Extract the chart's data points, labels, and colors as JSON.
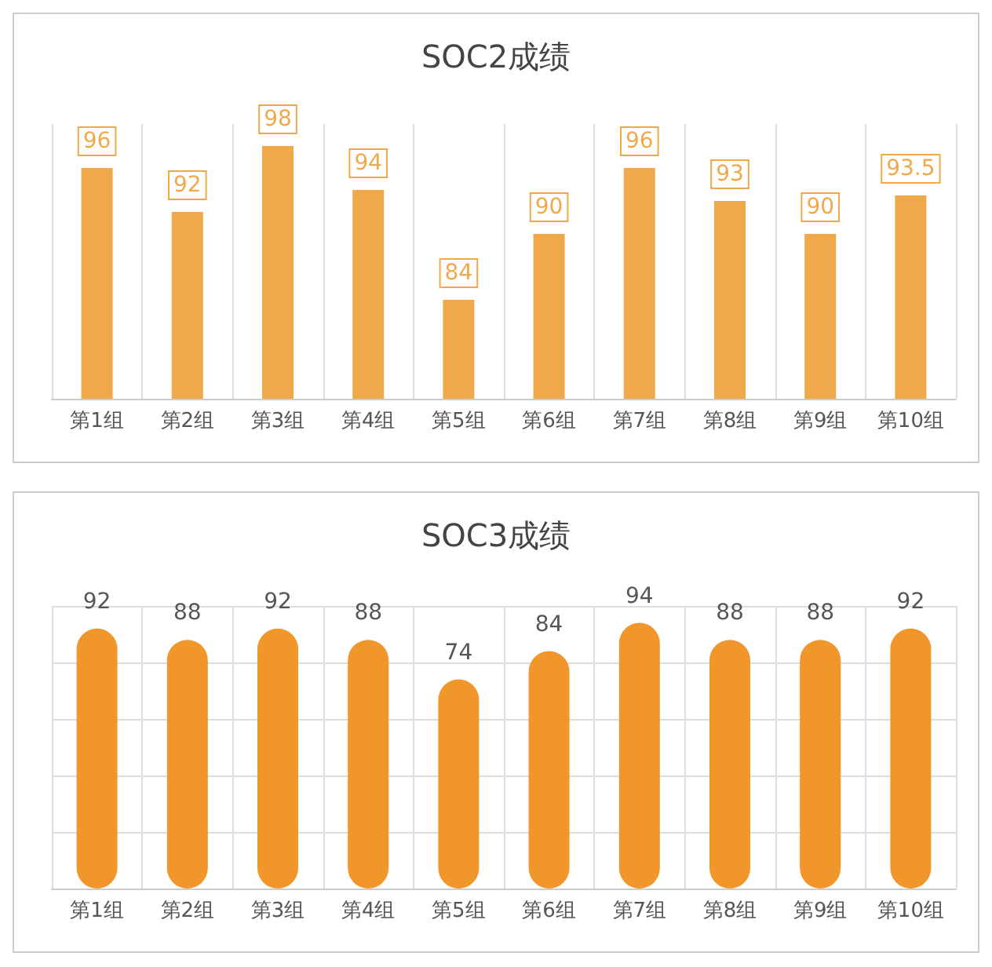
{
  "chart_data": [
    {
      "type": "bar",
      "title": "SOC2成绩",
      "categories": [
        "第1组",
        "第2组",
        "第3组",
        "第4组",
        "第5组",
        "第6组",
        "第7组",
        "第8组",
        "第9组",
        "第10组"
      ],
      "values": [
        96,
        92,
        98,
        94,
        84,
        90,
        96,
        93,
        90,
        93.5
      ],
      "color": "#f0a94a",
      "ylim": [
        75,
        100
      ],
      "data_labels": true,
      "grid": "x",
      "tick_labels": "x"
    },
    {
      "type": "bar",
      "title": "SOC3成绩",
      "categories": [
        "第1组",
        "第2组",
        "第3组",
        "第4组",
        "第5组",
        "第6组",
        "第7组",
        "第8组",
        "第9组",
        "第10组"
      ],
      "values": [
        92,
        88,
        92,
        88,
        74,
        84,
        94,
        88,
        88,
        92
      ],
      "color": "#f0962a",
      "ylim": [
        0,
        100
      ],
      "data_labels": true,
      "grid": true,
      "tick_labels": "x"
    }
  ]
}
